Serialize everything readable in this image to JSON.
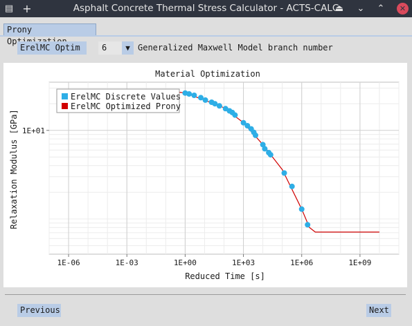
{
  "window": {
    "title": "Asphalt Concrete Thermal Stress Calculator - ACTS-CALC",
    "menu_glyph": "▤",
    "add_glyph": "+",
    "eject_glyph": "⏏",
    "minimize_glyph": "⌄",
    "maximize_glyph": "⌃",
    "close_glyph": "✕"
  },
  "tab": {
    "label": "Prony Optimization"
  },
  "controls": {
    "modulus_button": "ErelMC Optim",
    "branch_value": "6",
    "dropdown_glyph": "▼",
    "branch_label": "Generalized Maxwell Model branch number"
  },
  "chart_data": {
    "type": "scatter",
    "title": "Material Optimization",
    "xlabel": "Reduced Time [s]",
    "ylabel": "Relaxation Modulus [GPa]",
    "x_scale": "log",
    "y_scale": "log",
    "xlim": [
      1e-07,
      100000000000.0
    ],
    "ylim": [
      0.4,
      35
    ],
    "x_ticks": [
      1e-06,
      0.001,
      1,
      1000,
      1000000,
      1000000000
    ],
    "x_tick_labels": [
      "1E-06",
      "1E-03",
      "1E+00",
      "1E+03",
      "1E+06",
      "1E+09"
    ],
    "y_ticks": [
      10
    ],
    "y_tick_labels": [
      "1E+01"
    ],
    "grid": true,
    "legend_position": "top-left",
    "legend": [
      "ErelMC Discrete Values",
      "ErelMC Optimized Prony"
    ],
    "colors": {
      "discrete": "#2eaee6",
      "prony": "#d00000"
    },
    "series": [
      {
        "name": "ErelMC Discrete Values",
        "kind": "points",
        "points": [
          [
            1.0,
            26.4
          ],
          [
            1.6,
            25.8
          ],
          [
            2.9,
            24.9
          ],
          [
            6.4,
            23.4
          ],
          [
            11,
            22.0
          ],
          [
            23,
            20.8
          ],
          [
            34,
            20.0
          ],
          [
            58,
            18.9
          ],
          [
            120,
            17.6
          ],
          [
            192,
            16.6
          ],
          [
            268,
            15.9
          ],
          [
            369,
            14.9
          ],
          [
            1000,
            12.2
          ],
          [
            1600,
            11.3
          ],
          [
            2500,
            10.4
          ],
          [
            3400,
            9.5
          ],
          [
            4200,
            8.8
          ],
          [
            10000,
            6.9
          ],
          [
            12600,
            6.2
          ],
          [
            20000,
            5.6
          ],
          [
            25000,
            5.3
          ],
          [
            126000,
            3.3
          ],
          [
            316000,
            2.33
          ],
          [
            1000000,
            1.29
          ],
          [
            2000000,
            0.86
          ]
        ]
      },
      {
        "name": "ErelMC Optimized Prony",
        "kind": "line",
        "points": [
          [
            1e-06,
            27.5
          ],
          [
            0.001,
            27.5
          ],
          [
            0.5,
            27.0
          ],
          [
            1,
            26.4
          ],
          [
            10,
            22.0
          ],
          [
            100,
            18.0
          ],
          [
            1000,
            12.2
          ],
          [
            10000,
            6.9
          ],
          [
            100000,
            3.6
          ],
          [
            1000000,
            1.29
          ],
          [
            2500000,
            0.8
          ],
          [
            5000000,
            0.71
          ],
          [
            10000000,
            0.71
          ],
          [
            1000000000,
            0.71
          ],
          [
            10000000000,
            0.71
          ]
        ]
      }
    ]
  },
  "nav": {
    "previous": "Previous",
    "next": "Next"
  }
}
